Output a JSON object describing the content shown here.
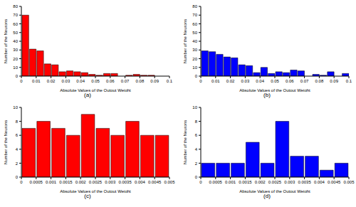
{
  "chart_data": [
    {
      "type": "histogram",
      "title": "(a)",
      "x_label": "Absolute Values of the Output Weight",
      "y_label": "Number of the Neurons",
      "color": "#ff0000",
      "bins": [
        0,
        0.005,
        0.01,
        0.015,
        0.02,
        0.025,
        0.03,
        0.035,
        0.04,
        0.045,
        0.05,
        0.055,
        0.06,
        0.065,
        0.07,
        0.075,
        0.08,
        0.085,
        0.09,
        0.095,
        0.1
      ],
      "counts": [
        70,
        31,
        29,
        14,
        13,
        5,
        6,
        5,
        4,
        2,
        1,
        3,
        3,
        0,
        1,
        2,
        1,
        1,
        0,
        0
      ],
      "xlim": [
        0,
        0.1
      ],
      "xticks": [
        0,
        0.01,
        0.02,
        0.03,
        0.04,
        0.05,
        0.06,
        0.07,
        0.08,
        0.09,
        0.1
      ],
      "ylim": [
        0,
        80
      ],
      "yticks": [
        0,
        10,
        20,
        30,
        40,
        50,
        60,
        70,
        80
      ]
    },
    {
      "type": "histogram",
      "title": "(b)",
      "x_label": "Absolute Values of the Output Weight",
      "y_label": "Number of the Neurons",
      "color": "#0000ff",
      "bins": [
        0,
        0.005,
        0.01,
        0.015,
        0.02,
        0.025,
        0.03,
        0.035,
        0.04,
        0.045,
        0.05,
        0.055,
        0.06,
        0.065,
        0.07,
        0.075,
        0.08,
        0.085,
        0.09,
        0.095,
        0.1
      ],
      "counts": [
        29,
        28,
        25,
        22,
        21,
        13,
        12,
        4,
        10,
        3,
        5,
        4,
        7,
        6,
        0,
        2,
        1,
        5,
        0,
        3
      ],
      "xlim": [
        0,
        0.1
      ],
      "xticks": [
        0,
        0.01,
        0.02,
        0.03,
        0.04,
        0.05,
        0.06,
        0.07,
        0.08,
        0.09,
        0.1
      ],
      "ylim": [
        0,
        80
      ],
      "yticks": [
        0,
        10,
        20,
        30,
        40,
        50,
        60,
        70,
        80
      ]
    },
    {
      "type": "histogram",
      "title": "(c)",
      "x_label": "Absolute Values of the Output Weight",
      "y_label": "Number of the Neurons",
      "color": "#ff0000",
      "bins": [
        0,
        0.0005,
        0.001,
        0.0015,
        0.002,
        0.0025,
        0.003,
        0.0035,
        0.004,
        0.0045,
        0.005
      ],
      "counts": [
        7,
        8,
        7,
        6,
        9,
        7,
        6,
        8,
        6,
        6
      ],
      "xlim": [
        0,
        0.005
      ],
      "xticks": [
        0,
        0.0005,
        0.001,
        0.0015,
        0.002,
        0.0025,
        0.003,
        0.0035,
        0.004,
        0.0045,
        0.005
      ],
      "ylim": [
        0,
        10
      ],
      "yticks": [
        0,
        2,
        4,
        6,
        8,
        10
      ]
    },
    {
      "type": "histogram",
      "title": "(d)",
      "x_label": "Absolute Values of the Output Weight",
      "y_label": "Number of the Neurons",
      "color": "#0000ff",
      "bins": [
        0,
        0.0005,
        0.001,
        0.0015,
        0.002,
        0.0025,
        0.003,
        0.0035,
        0.004,
        0.0045,
        0.005
      ],
      "counts": [
        2,
        2,
        2,
        5,
        2,
        8,
        3,
        3,
        1,
        2
      ],
      "xlim": [
        0,
        0.005
      ],
      "xticks": [
        0,
        0.0005,
        0.001,
        0.0015,
        0.002,
        0.0025,
        0.003,
        0.0035,
        0.004,
        0.0045,
        0.005
      ],
      "ylim": [
        0,
        10
      ],
      "yticks": [
        0,
        2,
        4,
        6,
        8,
        10
      ]
    }
  ]
}
